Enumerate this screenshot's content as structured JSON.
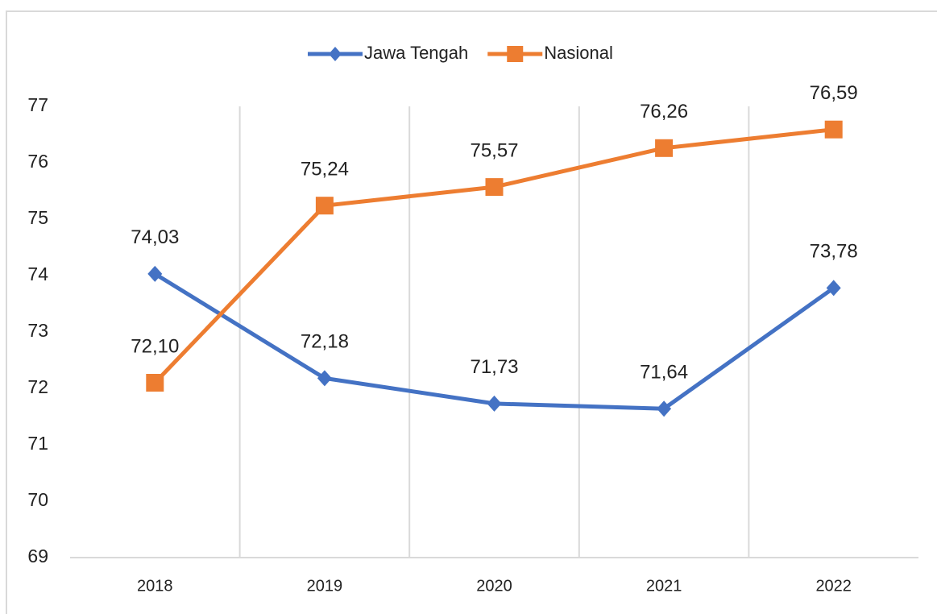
{
  "chart_data": {
    "type": "line",
    "categories": [
      "2018",
      "2019",
      "2020",
      "2021",
      "2022"
    ],
    "series": [
      {
        "name": "Jawa Tengah",
        "color": "#4472c4",
        "marker": "diamond",
        "values": [
          74.03,
          72.18,
          71.73,
          71.64,
          73.78
        ],
        "value_labels": [
          "74,03",
          "72,18",
          "71,73",
          "71,64",
          "73,78"
        ]
      },
      {
        "name": "Nasional",
        "color": "#ed7d31",
        "marker": "square",
        "values": [
          72.1,
          75.24,
          75.57,
          76.26,
          76.59
        ],
        "value_labels": [
          "72,10",
          "75,24",
          "75,57",
          "76,26",
          "76,59"
        ]
      }
    ],
    "ylim": [
      69,
      77
    ],
    "yticks": [
      69,
      70,
      71,
      72,
      73,
      74,
      75,
      76,
      77
    ],
    "grid": true,
    "legend": "top"
  }
}
